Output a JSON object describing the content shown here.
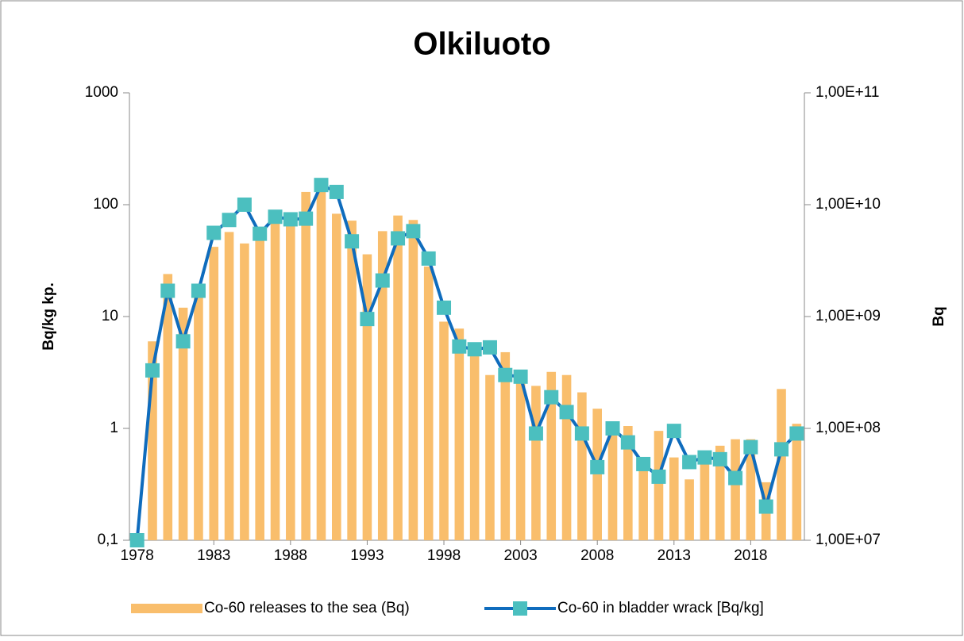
{
  "chart_data": {
    "type": "combo",
    "title": "Olkiluoto",
    "ylabel": "Bq/kg kp.",
    "y2label": "Bq",
    "x": [
      1978,
      1979,
      1980,
      1981,
      1982,
      1983,
      1984,
      1985,
      1986,
      1987,
      1988,
      1989,
      1990,
      1991,
      1992,
      1993,
      1994,
      1995,
      1996,
      1997,
      1998,
      1999,
      2000,
      2001,
      2002,
      2003,
      2004,
      2005,
      2006,
      2007,
      2008,
      2009,
      2010,
      2011,
      2012,
      2013,
      2014,
      2015,
      2016,
      2017,
      2018,
      2019,
      2020,
      2021
    ],
    "xlim": [
      1977.5,
      2021.5
    ],
    "xticks": [
      1978,
      1983,
      1988,
      1993,
      1998,
      2003,
      2008,
      2013,
      2018
    ],
    "ylim": [
      0.1,
      1000
    ],
    "yticks": [
      {
        "value": 0.1,
        "label": "0,1"
      },
      1,
      10,
      100,
      1000
    ],
    "y2lim": [
      10000000,
      100000000000
    ],
    "y2ticks": [
      {
        "value": 10000000,
        "label": "1,00E+07"
      },
      {
        "value": 100000000,
        "label": "1,00E+08"
      },
      {
        "value": 1000000000,
        "label": "1,00E+09"
      },
      {
        "value": 10000000000,
        "label": "1,00E+10"
      },
      {
        "value": 100000000000,
        "label": "1,00E+11"
      }
    ],
    "log_scale": true,
    "series": [
      {
        "name": "Co-60 releases to the sea (Bq)",
        "type": "bar",
        "axis": "y2",
        "color": "#f9be6c",
        "values": [
          null,
          600000000.0,
          2400000000.0,
          1200000000.0,
          1700000000.0,
          4200000000.0,
          5700000000.0,
          4500000000.0,
          4800000000.0,
          7500000000.0,
          7000000000.0,
          13000000000.0,
          14000000000.0,
          8300000000.0,
          7200000000.0,
          3600000000.0,
          5800000000.0,
          8000000000.0,
          7300000000.0,
          2800000000.0,
          900000000.0,
          780000000.0,
          550000000.0,
          300000000.0,
          480000000.0,
          300000000.0,
          240000000.0,
          320000000.0,
          300000000.0,
          210000000.0,
          150000000.0,
          110000000.0,
          105000000.0,
          55000000.0,
          95000000.0,
          55000000.0,
          35000000.0,
          55000000.0,
          70000000.0,
          80000000.0,
          80000000.0,
          33000000.0,
          225000000.0,
          110000000.0
        ]
      },
      {
        "name": "Co-60 in bladder wrack [Bq/kg]",
        "type": "line",
        "color": "#0f6cbd",
        "marker_color": "#4bbfbf",
        "values": [
          0.1,
          3.3,
          17,
          6,
          17,
          56,
          73,
          100,
          55,
          78,
          74,
          75,
          150,
          130,
          47,
          9.5,
          21,
          50,
          58,
          33,
          12,
          5.4,
          5.1,
          5.3,
          3,
          2.9,
          0.9,
          1.9,
          1.4,
          0.9,
          0.45,
          1,
          0.75,
          0.48,
          0.37,
          0.95,
          0.5,
          0.55,
          0.53,
          0.36,
          0.68,
          0.2,
          0.65,
          0.9
        ]
      }
    ]
  }
}
